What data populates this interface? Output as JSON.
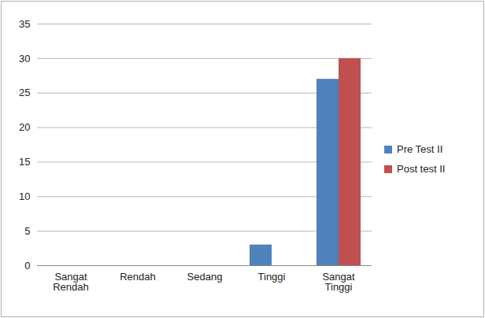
{
  "chart_data": {
    "type": "bar",
    "categories": [
      "Sangat Rendah",
      "Rendah",
      "Sedang",
      "Tinggi",
      "Sangat Tinggi"
    ],
    "series": [
      {
        "name": "Pre Test II",
        "color": "#4f81bd",
        "values": [
          0,
          0,
          0,
          3,
          27
        ]
      },
      {
        "name": "Post test II",
        "color": "#c0504d",
        "values": [
          0,
          0,
          0,
          0,
          30
        ]
      }
    ],
    "ylim": [
      0,
      35
    ],
    "yticks": [
      0,
      5,
      10,
      15,
      20,
      25,
      30,
      35
    ],
    "grid": true,
    "legend": "right"
  }
}
